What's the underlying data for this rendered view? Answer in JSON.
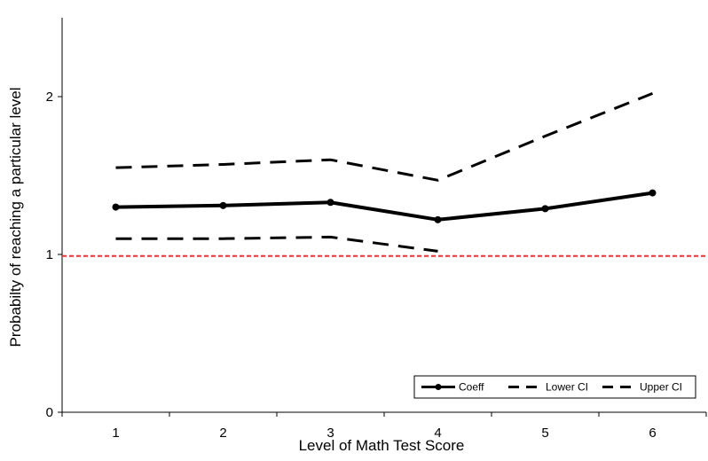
{
  "chart_data": {
    "type": "line",
    "title": "",
    "xlabel": "Level of Math Test Score",
    "ylabel": "Probabilty of reaching a particular level",
    "x": [
      1,
      2,
      3,
      4,
      5,
      6
    ],
    "xlim": [
      0.5,
      6.5
    ],
    "ylim": [
      0,
      2.5
    ],
    "y_ticks": [
      0,
      1,
      2
    ],
    "series": [
      {
        "name": "Coeff",
        "values": [
          1.3,
          1.31,
          1.33,
          1.22,
          1.29,
          1.39
        ],
        "style": "solid-marker",
        "color": "#000000"
      },
      {
        "name": "Lower CI",
        "values": [
          1.1,
          1.1,
          1.11,
          1.02,
          null,
          null
        ],
        "style": "dashed",
        "color": "#000000"
      },
      {
        "name": "Upper CI",
        "values": [
          1.55,
          1.57,
          1.6,
          1.47,
          1.75,
          2.02
        ],
        "style": "dashed",
        "color": "#000000"
      }
    ],
    "reference_line": {
      "y": 0.99,
      "color": "#e8352b",
      "style": "dotted"
    },
    "legend_position": "bottom-right",
    "grid": false
  }
}
